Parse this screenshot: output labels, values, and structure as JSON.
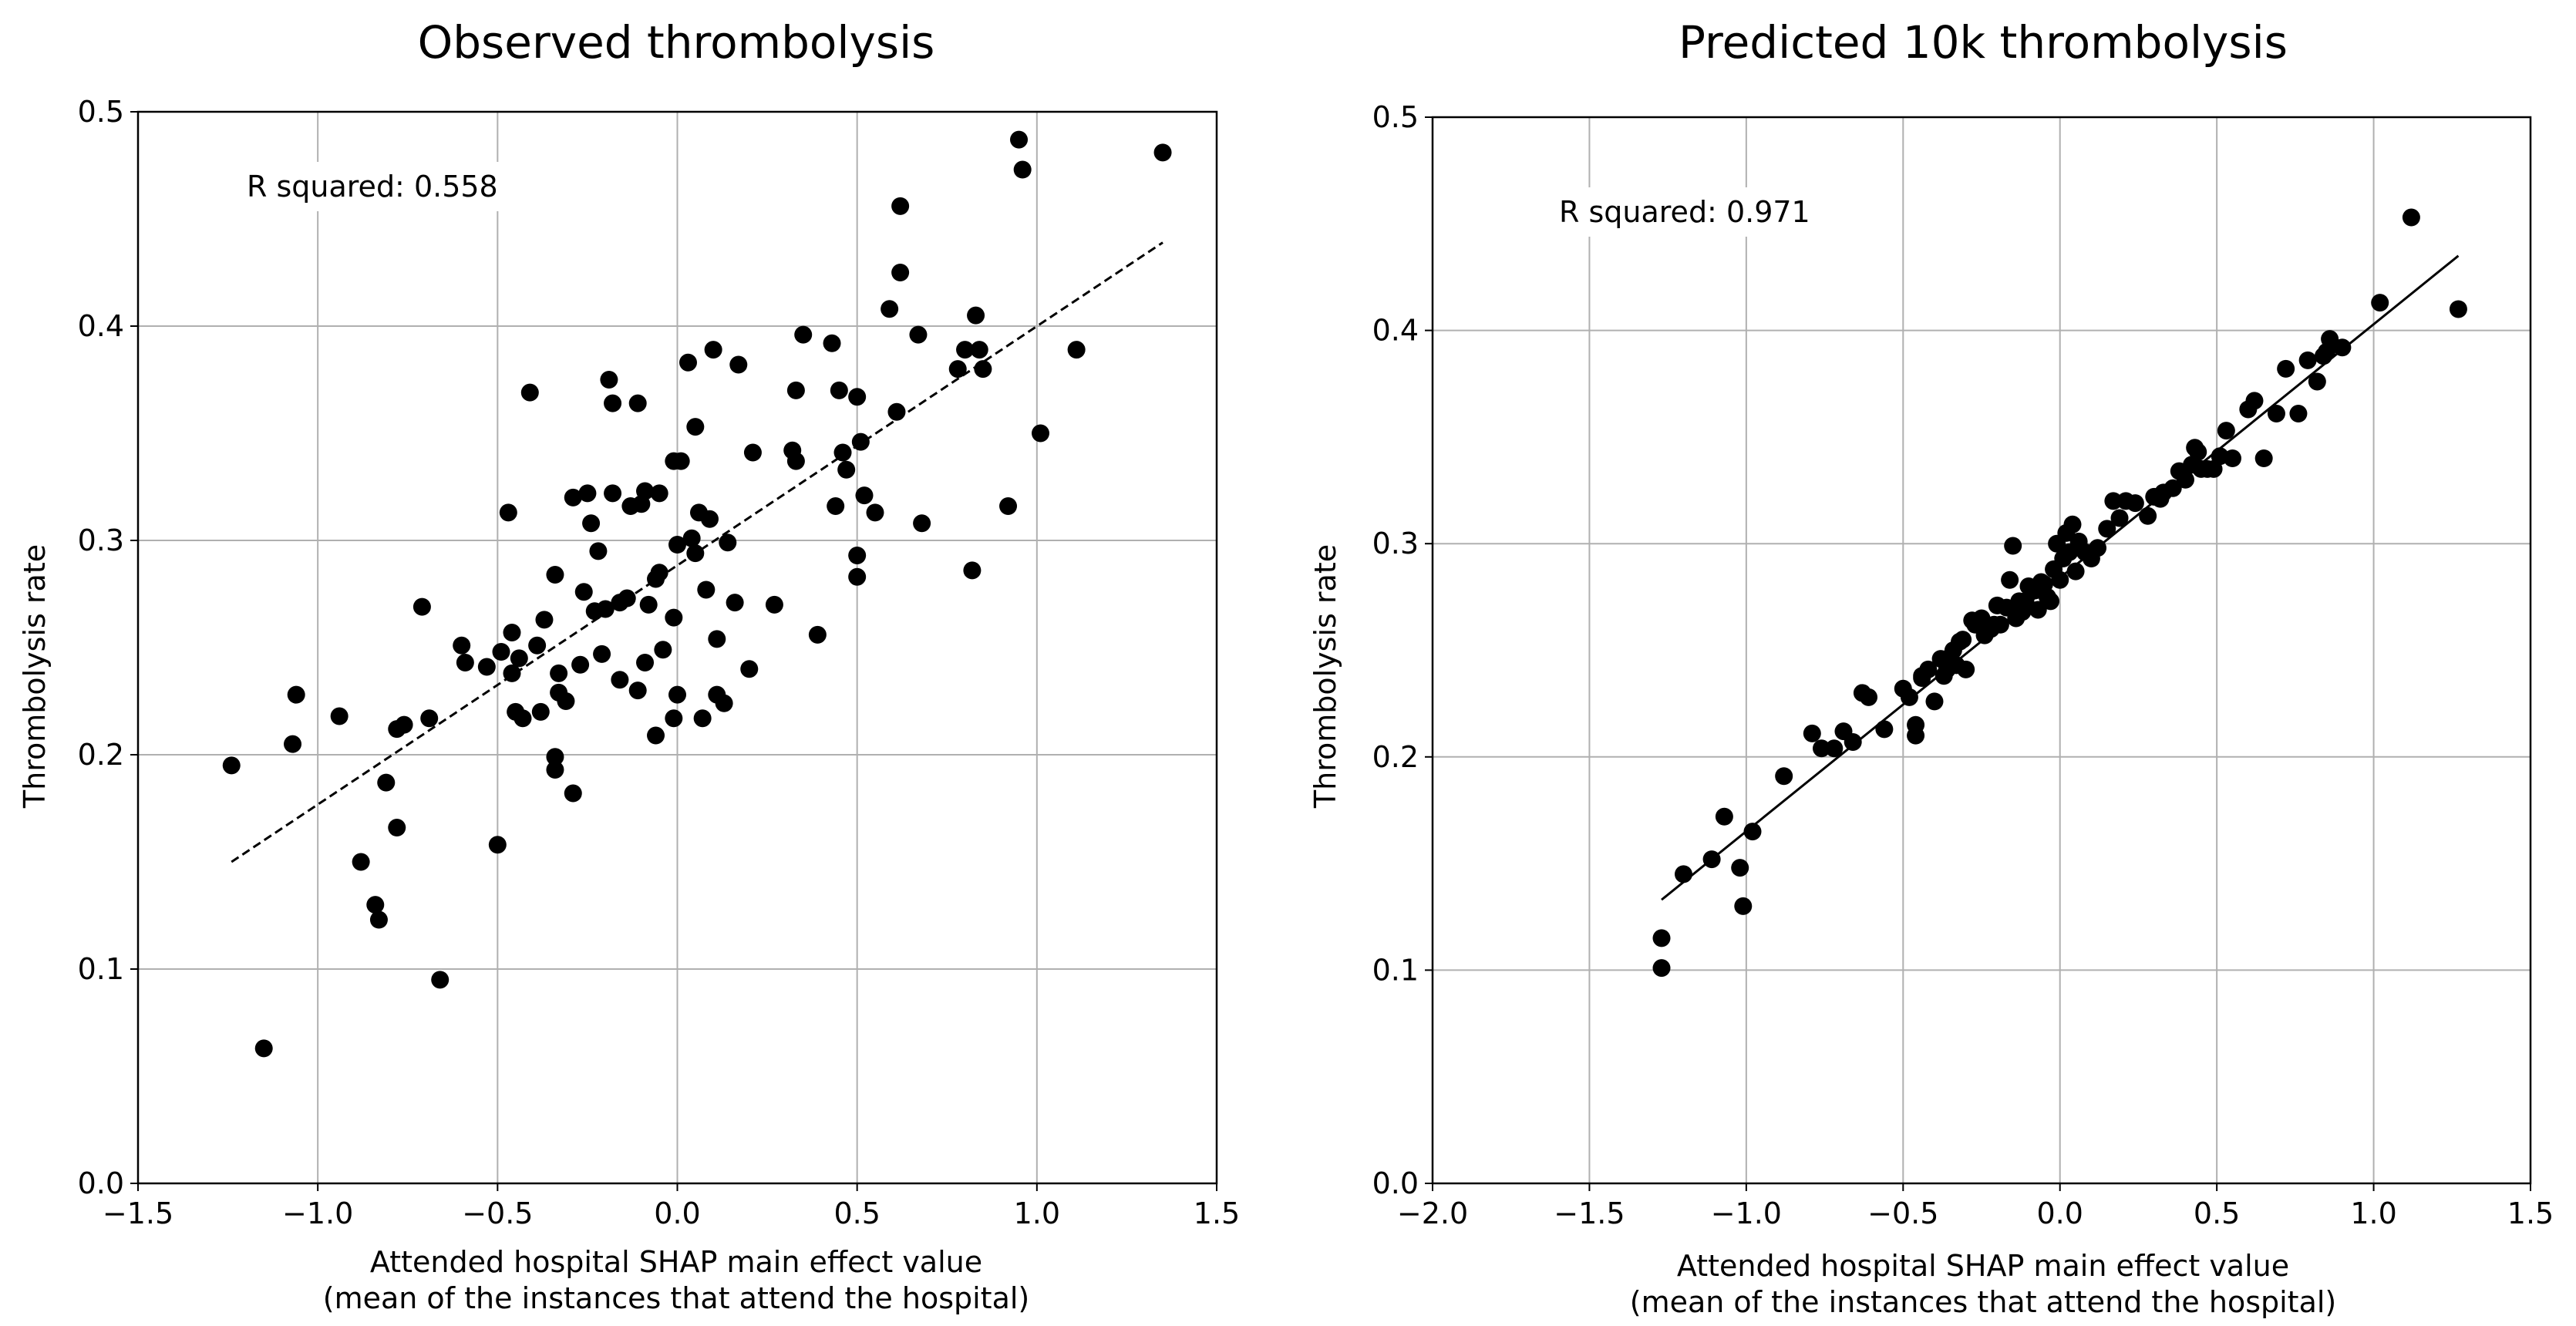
{
  "chart_data": [
    {
      "type": "scatter",
      "title": "Observed thrombolysis",
      "xlabel_line1": "Attended hospital SHAP main effect value",
      "xlabel_line2": "(mean of the instances that attend the hospital)",
      "ylabel": "Thrombolysis rate",
      "xlim": [
        -1.5,
        1.5
      ],
      "ylim": [
        0.0,
        0.5
      ],
      "xticks": [
        -1.5,
        -1.0,
        -0.5,
        0.0,
        0.5,
        1.0,
        1.5
      ],
      "xtick_labels": [
        "−1.5",
        "−1.0",
        "−0.5",
        "0.0",
        "0.5",
        "1.0",
        "1.5"
      ],
      "yticks": [
        0.0,
        0.1,
        0.2,
        0.3,
        0.4,
        0.5
      ],
      "ytick_labels": [
        "0.0",
        "0.1",
        "0.2",
        "0.3",
        "0.4",
        "0.5"
      ],
      "grid": true,
      "annotation": "R squared: 0.558",
      "trend_line": {
        "x": [
          -1.24,
          1.35
        ],
        "y": [
          0.15,
          0.439
        ],
        "style": "dashed"
      },
      "points": {
        "x": [
          -1.24,
          -1.15,
          -1.07,
          -1.06,
          -0.94,
          -0.88,
          -0.84,
          -0.83,
          -0.81,
          -0.78,
          -0.78,
          -0.76,
          -0.71,
          -0.69,
          -0.66,
          -0.6,
          -0.59,
          -0.53,
          -0.5,
          -0.49,
          -0.47,
          -0.46,
          -0.46,
          -0.45,
          -0.44,
          -0.43,
          -0.41,
          -0.39,
          -0.38,
          -0.37,
          -0.34,
          -0.34,
          -0.34,
          -0.33,
          -0.33,
          -0.31,
          -0.29,
          -0.29,
          -0.27,
          -0.26,
          -0.25,
          -0.24,
          -0.23,
          -0.22,
          -0.21,
          -0.2,
          -0.19,
          -0.18,
          -0.18,
          -0.16,
          -0.16,
          -0.14,
          -0.13,
          -0.11,
          -0.11,
          -0.1,
          -0.09,
          -0.09,
          -0.08,
          -0.06,
          -0.06,
          -0.05,
          -0.05,
          -0.04,
          -0.01,
          -0.01,
          -0.01,
          0.0,
          0.0,
          0.01,
          0.03,
          0.04,
          0.05,
          0.05,
          0.06,
          0.07,
          0.08,
          0.09,
          0.1,
          0.11,
          0.11,
          0.13,
          0.14,
          0.16,
          0.17,
          0.2,
          0.21,
          0.27,
          0.32,
          0.33,
          0.33,
          0.35,
          0.39,
          0.43,
          0.44,
          0.45,
          0.46,
          0.47,
          0.5,
          0.5,
          0.5,
          0.51,
          0.52,
          0.55,
          0.59,
          0.61,
          0.62,
          0.62,
          0.67,
          0.68,
          0.78,
          0.8,
          0.82,
          0.83,
          0.84,
          0.85,
          0.92,
          0.95,
          0.96,
          1.01,
          1.11,
          1.35
        ],
        "y": [
          0.195,
          0.063,
          0.205,
          0.228,
          0.218,
          0.15,
          0.13,
          0.123,
          0.187,
          0.212,
          0.166,
          0.214,
          0.269,
          0.217,
          0.095,
          0.251,
          0.243,
          0.241,
          0.158,
          0.248,
          0.313,
          0.257,
          0.238,
          0.22,
          0.245,
          0.217,
          0.369,
          0.251,
          0.22,
          0.263,
          0.284,
          0.199,
          0.193,
          0.229,
          0.238,
          0.225,
          0.32,
          0.182,
          0.242,
          0.276,
          0.322,
          0.308,
          0.267,
          0.295,
          0.247,
          0.268,
          0.375,
          0.364,
          0.322,
          0.235,
          0.271,
          0.273,
          0.316,
          0.23,
          0.364,
          0.317,
          0.243,
          0.323,
          0.27,
          0.282,
          0.209,
          0.322,
          0.285,
          0.249,
          0.337,
          0.264,
          0.217,
          0.298,
          0.228,
          0.337,
          0.383,
          0.301,
          0.294,
          0.353,
          0.313,
          0.217,
          0.277,
          0.31,
          0.389,
          0.228,
          0.254,
          0.224,
          0.299,
          0.271,
          0.382,
          0.24,
          0.341,
          0.27,
          0.342,
          0.337,
          0.37,
          0.396,
          0.256,
          0.392,
          0.316,
          0.37,
          0.341,
          0.333,
          0.367,
          0.293,
          0.283,
          0.346,
          0.321,
          0.313,
          0.408,
          0.36,
          0.456,
          0.425,
          0.396,
          0.308,
          0.38,
          0.389,
          0.286,
          0.405,
          0.389,
          0.38,
          0.316,
          0.487,
          0.473,
          0.35,
          0.389,
          0.481
        ]
      }
    },
    {
      "type": "scatter",
      "title": "Predicted 10k thrombolysis",
      "xlabel_line1": "Attended hospital SHAP main effect value",
      "xlabel_line2": "(mean of the instances that attend the hospital)",
      "ylabel": "Thrombolysis rate",
      "xlim": [
        -2.0,
        1.5
      ],
      "ylim": [
        0.0,
        0.5
      ],
      "xticks": [
        -2.0,
        -1.5,
        -1.0,
        -0.5,
        0.0,
        0.5,
        1.0,
        1.5
      ],
      "xtick_labels": [
        "−2.0",
        "−1.5",
        "−1.0",
        "−0.5",
        "0.0",
        "0.5",
        "1.0",
        "1.5"
      ],
      "yticks": [
        0.0,
        0.1,
        0.2,
        0.3,
        0.4,
        0.5
      ],
      "ytick_labels": [
        "0.0",
        "0.1",
        "0.2",
        "0.3",
        "0.4",
        "0.5"
      ],
      "grid": true,
      "annotation": "R squared: 0.971",
      "trend_line": {
        "x": [
          -1.27,
          1.27
        ],
        "y": [
          0.133,
          0.435
        ],
        "style": "solid"
      },
      "points": {
        "x": [
          -1.27,
          -1.27,
          -1.2,
          -1.11,
          -1.07,
          -1.02,
          -1.01,
          -0.98,
          -0.88,
          -0.79,
          -0.76,
          -0.72,
          -0.69,
          -0.66,
          -0.63,
          -0.61,
          -0.56,
          -0.5,
          -0.48,
          -0.46,
          -0.46,
          -0.44,
          -0.44,
          -0.42,
          -0.4,
          -0.38,
          -0.37,
          -0.36,
          -0.36,
          -0.34,
          -0.33,
          -0.32,
          -0.31,
          -0.3,
          -0.28,
          -0.27,
          -0.25,
          -0.24,
          -0.22,
          -0.21,
          -0.2,
          -0.19,
          -0.17,
          -0.16,
          -0.15,
          -0.14,
          -0.13,
          -0.12,
          -0.11,
          -0.1,
          -0.09,
          -0.08,
          -0.07,
          -0.06,
          -0.05,
          -0.04,
          -0.03,
          -0.02,
          -0.01,
          0.0,
          0.01,
          0.02,
          0.03,
          0.04,
          0.05,
          0.06,
          0.08,
          0.1,
          0.12,
          0.15,
          0.17,
          0.19,
          0.21,
          0.24,
          0.28,
          0.3,
          0.32,
          0.33,
          0.36,
          0.38,
          0.4,
          0.42,
          0.43,
          0.44,
          0.45,
          0.47,
          0.49,
          0.51,
          0.53,
          0.55,
          0.6,
          0.62,
          0.65,
          0.69,
          0.72,
          0.76,
          0.79,
          0.82,
          0.84,
          0.85,
          0.86,
          0.9,
          1.02,
          1.12,
          1.27
        ],
        "y": [
          0.115,
          0.101,
          0.145,
          0.152,
          0.172,
          0.148,
          0.13,
          0.165,
          0.191,
          0.211,
          0.204,
          0.204,
          0.212,
          0.207,
          0.23,
          0.228,
          0.213,
          0.232,
          0.228,
          0.21,
          0.215,
          0.237,
          0.238,
          0.241,
          0.226,
          0.246,
          0.238,
          0.246,
          0.241,
          0.25,
          0.243,
          0.254,
          0.255,
          0.241,
          0.264,
          0.262,
          0.265,
          0.257,
          0.26,
          0.262,
          0.271,
          0.262,
          0.27,
          0.283,
          0.299,
          0.265,
          0.273,
          0.268,
          0.273,
          0.28,
          0.279,
          0.278,
          0.269,
          0.282,
          0.281,
          0.275,
          0.273,
          0.288,
          0.3,
          0.283,
          0.293,
          0.305,
          0.296,
          0.309,
          0.287,
          0.301,
          0.296,
          0.293,
          0.298,
          0.307,
          0.32,
          0.312,
          0.32,
          0.319,
          0.313,
          0.322,
          0.321,
          0.324,
          0.326,
          0.334,
          0.33,
          0.337,
          0.345,
          0.343,
          0.335,
          0.335,
          0.335,
          0.341,
          0.353,
          0.34,
          0.363,
          0.367,
          0.34,
          0.361,
          0.382,
          0.361,
          0.386,
          0.376,
          0.388,
          0.39,
          0.396,
          0.392,
          0.413,
          0.453,
          0.41
        ]
      }
    }
  ]
}
